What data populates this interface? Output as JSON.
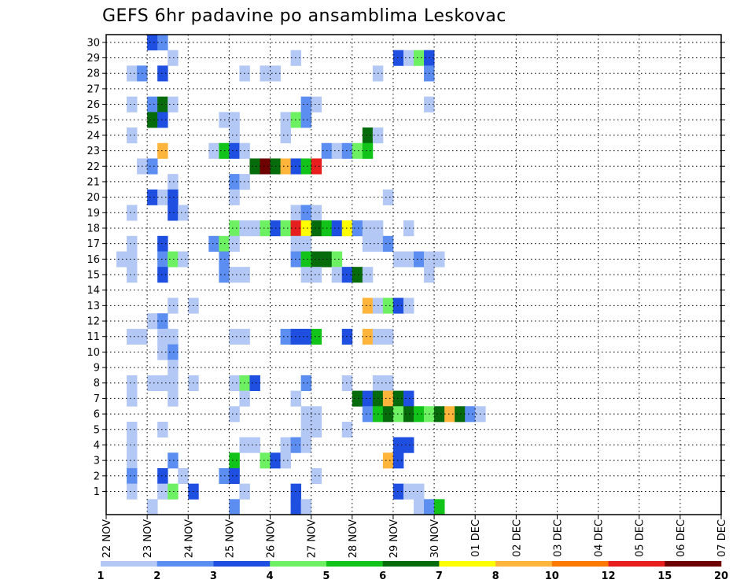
{
  "chart_data": {
    "type": "heatmap",
    "title": "GEFS 6hr padavine po ansamblima Leskovac",
    "xlabel": "",
    "ylabel": "",
    "x_ticks": [
      "22 NOV",
      "23 NOV",
      "24 NOV",
      "25 NOV",
      "26 NOV",
      "27 NOV",
      "28 NOV",
      "29 NOV",
      "30 NOV",
      "01 DEC",
      "02 DEC",
      "03 DEC",
      "04 DEC",
      "05 DEC",
      "06 DEC",
      "07 DEC"
    ],
    "y_ticks": [
      1,
      2,
      3,
      4,
      5,
      6,
      7,
      8,
      9,
      10,
      11,
      12,
      13,
      14,
      15,
      16,
      17,
      18,
      19,
      20,
      21,
      22,
      23,
      24,
      25,
      26,
      27,
      28,
      29,
      30
    ],
    "ylim": [
      0,
      30
    ],
    "grid": true,
    "colorbar": {
      "labels": [
        "1",
        "2",
        "3",
        "4",
        "5",
        "6",
        "7",
        "8",
        "10",
        "12",
        "15",
        "20"
      ],
      "colors": [
        "#b4c8f5",
        "#5b8ef0",
        "#1e4fe0",
        "#6ef063",
        "#12c41a",
        "#066b0a",
        "#ffff00",
        "#ffb43c",
        "#ff7800",
        "#e61e1e",
        "#6e0000"
      ]
    },
    "cells": [
      [
        4,
        30,
        2
      ],
      [
        5,
        30,
        1
      ],
      [
        6,
        29,
        0
      ],
      [
        18,
        29,
        0
      ],
      [
        28,
        29,
        2
      ],
      [
        29,
        29,
        0
      ],
      [
        30,
        29,
        3
      ],
      [
        31,
        29,
        2
      ],
      [
        2,
        28,
        0
      ],
      [
        3,
        28,
        1
      ],
      [
        5,
        28,
        2
      ],
      [
        13,
        28,
        0
      ],
      [
        15,
        28,
        0
      ],
      [
        16,
        28,
        0
      ],
      [
        26,
        28,
        0
      ],
      [
        31,
        28,
        1
      ],
      [
        2,
        26,
        0
      ],
      [
        4,
        26,
        1
      ],
      [
        5,
        26,
        5
      ],
      [
        6,
        26,
        0
      ],
      [
        19,
        26,
        1
      ],
      [
        20,
        26,
        0
      ],
      [
        31,
        26,
        0
      ],
      [
        4,
        25,
        5
      ],
      [
        5,
        25,
        2
      ],
      [
        11,
        25,
        0
      ],
      [
        12,
        25,
        0
      ],
      [
        17,
        25,
        0
      ],
      [
        18,
        25,
        3
      ],
      [
        19,
        25,
        1
      ],
      [
        2,
        24,
        0
      ],
      [
        12,
        24,
        0
      ],
      [
        17,
        24,
        0
      ],
      [
        25,
        24,
        5
      ],
      [
        26,
        24,
        0
      ],
      [
        5,
        23,
        7
      ],
      [
        10,
        23,
        0
      ],
      [
        11,
        23,
        4
      ],
      [
        12,
        23,
        2
      ],
      [
        13,
        23,
        0
      ],
      [
        21,
        23,
        1
      ],
      [
        22,
        23,
        0
      ],
      [
        23,
        23,
        1
      ],
      [
        24,
        23,
        3
      ],
      [
        25,
        23,
        4
      ],
      [
        3,
        22,
        0
      ],
      [
        4,
        22,
        1
      ],
      [
        14,
        22,
        5
      ],
      [
        15,
        22,
        10
      ],
      [
        16,
        22,
        5
      ],
      [
        17,
        22,
        7
      ],
      [
        18,
        22,
        2
      ],
      [
        19,
        22,
        4
      ],
      [
        20,
        22,
        9
      ],
      [
        6,
        21,
        0
      ],
      [
        12,
        21,
        1
      ],
      [
        13,
        21,
        0
      ],
      [
        4,
        20,
        2
      ],
      [
        5,
        20,
        0
      ],
      [
        6,
        20,
        2
      ],
      [
        12,
        20,
        0
      ],
      [
        27,
        20,
        0
      ],
      [
        2,
        19,
        0
      ],
      [
        6,
        19,
        2
      ],
      [
        7,
        19,
        0
      ],
      [
        18,
        19,
        0
      ],
      [
        19,
        19,
        1
      ],
      [
        20,
        19,
        0
      ],
      [
        12,
        18,
        3
      ],
      [
        13,
        18,
        0
      ],
      [
        14,
        18,
        0
      ],
      [
        15,
        18,
        3
      ],
      [
        16,
        18,
        2
      ],
      [
        17,
        18,
        3
      ],
      [
        18,
        18,
        9
      ],
      [
        19,
        18,
        6
      ],
      [
        20,
        18,
        5
      ],
      [
        21,
        18,
        4
      ],
      [
        22,
        18,
        2
      ],
      [
        23,
        18,
        6
      ],
      [
        24,
        18,
        1
      ],
      [
        25,
        18,
        0
      ],
      [
        26,
        18,
        0
      ],
      [
        29,
        18,
        0
      ],
      [
        2,
        17,
        0
      ],
      [
        5,
        17,
        2
      ],
      [
        10,
        17,
        1
      ],
      [
        11,
        17,
        3
      ],
      [
        12,
        17,
        0
      ],
      [
        18,
        17,
        0
      ],
      [
        19,
        17,
        0
      ],
      [
        25,
        17,
        0
      ],
      [
        26,
        17,
        0
      ],
      [
        27,
        17,
        1
      ],
      [
        1,
        16,
        0
      ],
      [
        2,
        16,
        0
      ],
      [
        5,
        16,
        1
      ],
      [
        6,
        16,
        3
      ],
      [
        7,
        16,
        0
      ],
      [
        11,
        16,
        1
      ],
      [
        18,
        16,
        1
      ],
      [
        19,
        16,
        4
      ],
      [
        20,
        16,
        5
      ],
      [
        21,
        16,
        5
      ],
      [
        22,
        16,
        3
      ],
      [
        28,
        16,
        0
      ],
      [
        29,
        16,
        0
      ],
      [
        30,
        16,
        1
      ],
      [
        31,
        16,
        0
      ],
      [
        32,
        16,
        0
      ],
      [
        2,
        15,
        0
      ],
      [
        5,
        15,
        2
      ],
      [
        11,
        15,
        1
      ],
      [
        12,
        15,
        0
      ],
      [
        13,
        15,
        0
      ],
      [
        19,
        15,
        0
      ],
      [
        20,
        15,
        0
      ],
      [
        22,
        15,
        0
      ],
      [
        23,
        15,
        2
      ],
      [
        24,
        15,
        5
      ],
      [
        25,
        15,
        0
      ],
      [
        31,
        15,
        0
      ],
      [
        6,
        13,
        0
      ],
      [
        8,
        13,
        0
      ],
      [
        25,
        13,
        7
      ],
      [
        26,
        13,
        0
      ],
      [
        27,
        13,
        3
      ],
      [
        28,
        13,
        2
      ],
      [
        29,
        13,
        0
      ],
      [
        4,
        12,
        0
      ],
      [
        5,
        12,
        1
      ],
      [
        2,
        11,
        0
      ],
      [
        3,
        11,
        0
      ],
      [
        5,
        11,
        0
      ],
      [
        6,
        11,
        0
      ],
      [
        12,
        11,
        0
      ],
      [
        13,
        11,
        0
      ],
      [
        17,
        11,
        1
      ],
      [
        18,
        11,
        2
      ],
      [
        19,
        11,
        2
      ],
      [
        20,
        11,
        4
      ],
      [
        23,
        11,
        2
      ],
      [
        25,
        11,
        7
      ],
      [
        26,
        11,
        0
      ],
      [
        27,
        11,
        0
      ],
      [
        5,
        10,
        0
      ],
      [
        6,
        10,
        1
      ],
      [
        6,
        9,
        0
      ],
      [
        2,
        8,
        0
      ],
      [
        4,
        8,
        0
      ],
      [
        5,
        8,
        0
      ],
      [
        6,
        8,
        0
      ],
      [
        8,
        8,
        0
      ],
      [
        12,
        8,
        0
      ],
      [
        13,
        8,
        3
      ],
      [
        14,
        8,
        2
      ],
      [
        19,
        8,
        1
      ],
      [
        23,
        8,
        0
      ],
      [
        26,
        8,
        0
      ],
      [
        27,
        8,
        0
      ],
      [
        2,
        7,
        0
      ],
      [
        6,
        7,
        0
      ],
      [
        13,
        7,
        0
      ],
      [
        18,
        7,
        0
      ],
      [
        24,
        7,
        5
      ],
      [
        25,
        7,
        2
      ],
      [
        26,
        7,
        5
      ],
      [
        27,
        7,
        7
      ],
      [
        28,
        7,
        5
      ],
      [
        29,
        7,
        2
      ],
      [
        12,
        6,
        0
      ],
      [
        19,
        6,
        0
      ],
      [
        20,
        6,
        0
      ],
      [
        25,
        6,
        1
      ],
      [
        26,
        6,
        4
      ],
      [
        27,
        6,
        5
      ],
      [
        28,
        6,
        3
      ],
      [
        29,
        6,
        5
      ],
      [
        30,
        6,
        4
      ],
      [
        31,
        6,
        3
      ],
      [
        32,
        6,
        5
      ],
      [
        33,
        6,
        7
      ],
      [
        34,
        6,
        5
      ],
      [
        35,
        6,
        1
      ],
      [
        36,
        6,
        0
      ],
      [
        2,
        5,
        0
      ],
      [
        5,
        5,
        0
      ],
      [
        19,
        5,
        0
      ],
      [
        20,
        5,
        0
      ],
      [
        23,
        5,
        0
      ],
      [
        2,
        4,
        0
      ],
      [
        13,
        4,
        0
      ],
      [
        14,
        4,
        0
      ],
      [
        17,
        4,
        0
      ],
      [
        18,
        4,
        1
      ],
      [
        19,
        4,
        0
      ],
      [
        28,
        4,
        2
      ],
      [
        29,
        4,
        2
      ],
      [
        2,
        3,
        0
      ],
      [
        6,
        3,
        1
      ],
      [
        12,
        3,
        4
      ],
      [
        15,
        3,
        3
      ],
      [
        16,
        3,
        2
      ],
      [
        17,
        3,
        0
      ],
      [
        27,
        3,
        7
      ],
      [
        28,
        3,
        2
      ],
      [
        2,
        2,
        1
      ],
      [
        5,
        2,
        2
      ],
      [
        7,
        2,
        0
      ],
      [
        11,
        2,
        1
      ],
      [
        12,
        2,
        2
      ],
      [
        20,
        2,
        0
      ],
      [
        2,
        1,
        0
      ],
      [
        5,
        1,
        0
      ],
      [
        6,
        1,
        3
      ],
      [
        8,
        1,
        2
      ],
      [
        13,
        1,
        0
      ],
      [
        18,
        1,
        2
      ],
      [
        28,
        1,
        2
      ],
      [
        29,
        1,
        0
      ],
      [
        30,
        1,
        0
      ],
      [
        4,
        0,
        0
      ],
      [
        12,
        0,
        1
      ],
      [
        18,
        0,
        2
      ],
      [
        19,
        0,
        0
      ],
      [
        30,
        0,
        0
      ],
      [
        31,
        0,
        1
      ],
      [
        32,
        0,
        4
      ]
    ]
  }
}
